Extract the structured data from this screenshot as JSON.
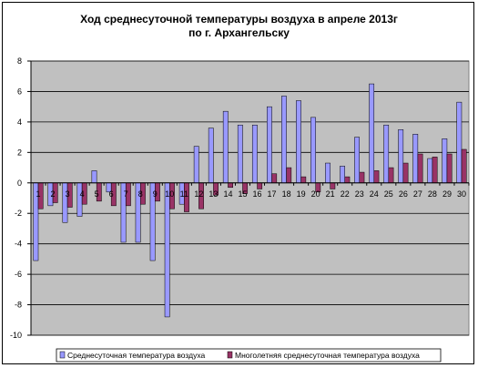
{
  "chart_data": {
    "type": "bar",
    "title": [
      "Ход среднесуточной температуры воздуха в апреле 2013г",
      "по г. Архангельску"
    ],
    "categories": [
      "1",
      "2",
      "3",
      "4",
      "5",
      "6",
      "7",
      "8",
      "9",
      "10",
      "11",
      "12",
      "13",
      "14",
      "15",
      "16",
      "17",
      "18",
      "19",
      "20",
      "21",
      "22",
      "23",
      "24",
      "25",
      "26",
      "27",
      "28",
      "29",
      "30"
    ],
    "series": [
      {
        "name": "Среднесуточная температура воздуха",
        "color": "#9999FF",
        "values": [
          -5.1,
          -1.5,
          -2.6,
          -2.2,
          0.8,
          -0.6,
          -3.9,
          -3.9,
          -5.1,
          -8.8,
          -1.4,
          2.4,
          3.6,
          4.7,
          3.8,
          3.8,
          5.0,
          5.7,
          5.4,
          4.3,
          1.3,
          1.1,
          3.0,
          6.5,
          3.8,
          3.5,
          3.2,
          1.6,
          2.9,
          5.3
        ]
      },
      {
        "name": "Многолетняя среднесуточная температура воздуха",
        "color": "#993366",
        "values": [
          -1.7,
          -1.3,
          -1.6,
          -1.4,
          -1.2,
          -1.5,
          -1.5,
          -1.4,
          -1.2,
          -1.7,
          -1.9,
          -1.7,
          -0.8,
          -0.3,
          -0.7,
          -0.4,
          0.6,
          1.0,
          0.4,
          -0.6,
          -0.4,
          0.4,
          0.7,
          0.8,
          1.0,
          1.3,
          1.9,
          1.7,
          1.9,
          2.2
        ]
      }
    ],
    "ylim": [
      -10,
      8
    ],
    "yticks": [
      "-10",
      "-8",
      "-6",
      "-4",
      "-2",
      "0",
      "2",
      "4",
      "6",
      "8"
    ],
    "plot_background": "#C0C0C0",
    "grid": true,
    "legend_position": "bottom"
  }
}
